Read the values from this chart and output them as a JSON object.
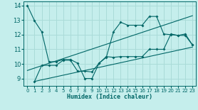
{
  "xlabel": "Humidex (Indice chaleur)",
  "ylabel": "",
  "bg_color": "#c5eeec",
  "grid_color": "#aadbd8",
  "line_color": "#006666",
  "xlim": [
    -0.5,
    23.5
  ],
  "ylim": [
    8.5,
    14.3
  ],
  "xticks": [
    0,
    1,
    2,
    3,
    4,
    5,
    6,
    7,
    8,
    9,
    10,
    11,
    12,
    13,
    14,
    15,
    16,
    17,
    18,
    19,
    20,
    21,
    22,
    23
  ],
  "yticks": [
    9,
    10,
    11,
    12,
    13,
    14
  ],
  "line1_x": [
    0,
    1,
    2,
    3,
    4,
    5,
    6,
    7,
    8,
    9,
    10,
    11,
    12,
    13,
    14,
    15,
    16,
    17,
    18,
    19,
    20,
    21,
    22,
    23
  ],
  "line1_y": [
    14.0,
    12.95,
    12.2,
    10.15,
    10.15,
    10.3,
    10.3,
    10.05,
    9.0,
    9.0,
    10.05,
    10.45,
    12.2,
    12.85,
    12.65,
    12.65,
    12.65,
    13.25,
    13.25,
    12.05,
    12.0,
    11.95,
    12.05,
    11.3
  ],
  "line2_x": [
    1,
    2,
    3,
    4,
    5,
    6,
    7,
    8,
    9,
    10,
    11,
    12,
    13,
    14,
    15,
    16,
    17,
    18,
    19,
    20,
    21,
    22,
    23
  ],
  "line2_y": [
    8.8,
    9.9,
    9.9,
    9.9,
    10.25,
    10.25,
    9.5,
    9.5,
    9.45,
    10.05,
    10.5,
    10.45,
    10.5,
    10.5,
    10.5,
    10.5,
    11.0,
    11.0,
    11.0,
    12.05,
    11.95,
    11.95,
    11.3
  ],
  "line3_x": [
    1,
    23
  ],
  "line3_y": [
    8.8,
    11.15
  ],
  "line4_x": [
    0,
    23
  ],
  "line4_y": [
    9.55,
    13.3
  ]
}
